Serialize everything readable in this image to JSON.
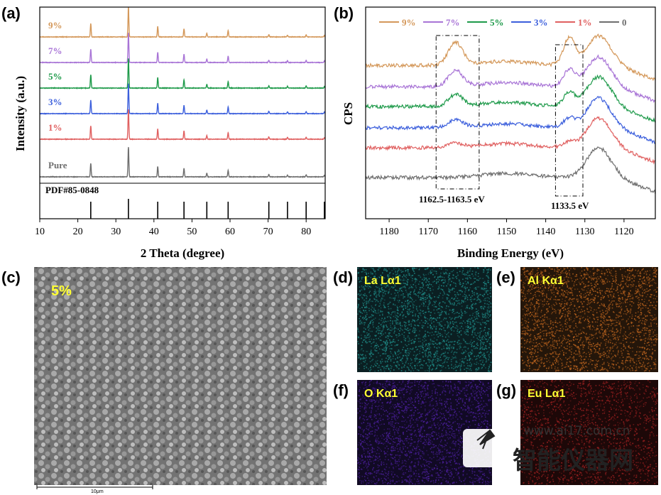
{
  "panels": {
    "a": {
      "label": "(a)"
    },
    "b": {
      "label": "(b)"
    },
    "c": {
      "label": "(c)",
      "tag": "5%",
      "scalebar": "10μm"
    },
    "d": {
      "label": "(d)",
      "map": "La Lα1",
      "color": "#1f8a86"
    },
    "e": {
      "label": "(e)",
      "map": "Al Kα1",
      "color": "#b8621e"
    },
    "f": {
      "label": "(f)",
      "map": "O Kα1",
      "color": "#4a1f9a"
    },
    "g": {
      "label": "(g)",
      "map": "Eu Lα1",
      "color": "#9a2020"
    }
  },
  "watermark": {
    "url": "www.ai17.com.cn",
    "cn": "智能仪器网"
  },
  "chart_data": [
    {
      "type": "line",
      "panel": "a",
      "xlabel": "2 Theta (degree)",
      "ylabel": "Intensity (a.u.)",
      "xlim": [
        10,
        85
      ],
      "xticks": [
        10,
        20,
        30,
        40,
        50,
        60,
        70,
        80
      ],
      "reference": {
        "name": "PDF#85-0848",
        "positions": [
          23.4,
          33.3,
          41.0,
          47.9,
          53.9,
          59.5,
          70.2,
          75.1,
          80.0,
          84.8
        ]
      },
      "peaks": [
        {
          "x": 23.4,
          "h": 0.45
        },
        {
          "x": 33.3,
          "h": 1.0
        },
        {
          "x": 41.0,
          "h": 0.35
        },
        {
          "x": 47.9,
          "h": 0.28
        },
        {
          "x": 53.9,
          "h": 0.12
        },
        {
          "x": 59.5,
          "h": 0.22
        },
        {
          "x": 70.2,
          "h": 0.08
        },
        {
          "x": 75.1,
          "h": 0.06
        },
        {
          "x": 80.0,
          "h": 0.07
        },
        {
          "x": 84.8,
          "h": 0.05
        }
      ],
      "series": [
        {
          "name": "9%",
          "color": "#d4985a"
        },
        {
          "name": "7%",
          "color": "#a874d6"
        },
        {
          "name": "5%",
          "color": "#1e9a4a"
        },
        {
          "name": "3%",
          "color": "#3c5fdc"
        },
        {
          "name": "1%",
          "color": "#e06060"
        },
        {
          "name": "Pure",
          "color": "#6e6e6e"
        }
      ]
    },
    {
      "type": "line",
      "panel": "b",
      "xlabel": "Binding Energy (eV)",
      "ylabel": "CPS",
      "xlim": [
        1186,
        1112
      ],
      "xticks": [
        1180,
        1170,
        1160,
        1150,
        1140,
        1130,
        1120
      ],
      "legend_position": "top",
      "annotations": [
        {
          "text": "1162.5-1163.5 eV",
          "range": [
            1168,
            1157
          ]
        },
        {
          "text": "1133.5 eV",
          "range": [
            1137.5,
            1130.5
          ]
        }
      ],
      "series": [
        {
          "name": "9%",
          "color": "#d4985a",
          "a1163": 0.55,
          "a1134": 0.65
        },
        {
          "name": "7%",
          "color": "#a874d6",
          "a1163": 0.38,
          "a1134": 0.4
        },
        {
          "name": "5%",
          "color": "#1e9a4a",
          "a1163": 0.28,
          "a1134": 0.32
        },
        {
          "name": "3%",
          "color": "#3c5fdc",
          "a1163": 0.18,
          "a1134": 0.22
        },
        {
          "name": "1%",
          "color": "#e06060",
          "a1163": 0.1,
          "a1134": 0.12
        },
        {
          "name": "0",
          "color": "#6e6e6e",
          "a1163": 0.0,
          "a1134": 0.0
        }
      ]
    }
  ]
}
